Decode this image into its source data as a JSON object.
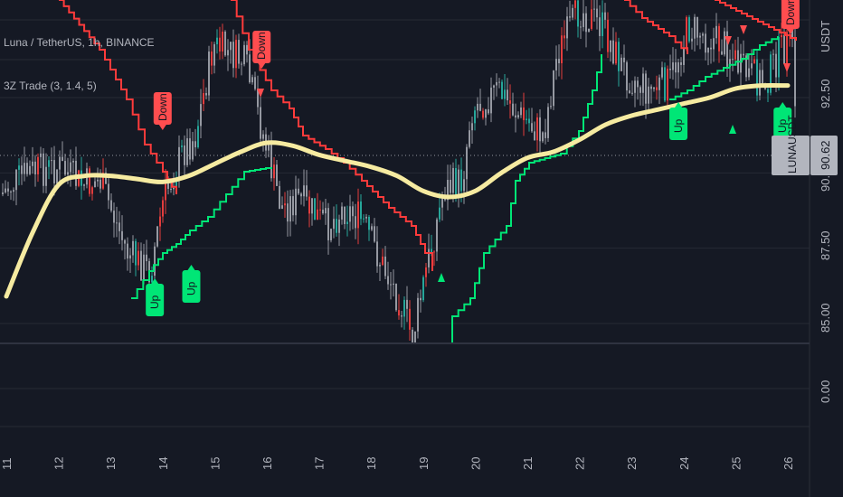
{
  "legend": {
    "symbol_line": "Luna / TetherUS, 1h, BINANCE",
    "indicator_line": "3Z Trade (3, 1.4, 5)"
  },
  "price_axis": {
    "currency_label": "USDT",
    "ticks": [
      "92.50",
      "90.00",
      "87.50",
      "85.00"
    ],
    "sub_tick": "0.00"
  },
  "last_price": {
    "symbol": "LUNAUSDT",
    "value": "90.62"
  },
  "x_axis": {
    "ticks": [
      "11",
      "12",
      "13",
      "14",
      "15",
      "16",
      "17",
      "18",
      "19",
      "20",
      "21",
      "22",
      "23",
      "24",
      "25",
      "26"
    ]
  },
  "colors": {
    "background": "#151924",
    "grid": "#262a35",
    "up_candle": "#26a69a",
    "down_candle": "#e23d3d",
    "neutral_candle": "#9598a1",
    "trail_up": "#00e676",
    "trail_down": "#ff3b3b",
    "ma": "#f6eba1",
    "up_label": "#00e676",
    "down_label": "#ff4d4f"
  },
  "chart_data": {
    "type": "line",
    "ylim": [
      84.2,
      96.4
    ],
    "x": [
      11,
      11.5,
      12,
      12.5,
      13,
      13.5,
      14,
      14.5,
      15,
      15.5,
      16,
      16.5,
      17,
      17.5,
      18,
      18.5,
      19,
      19.5,
      20,
      20.5,
      21,
      21.5,
      22,
      22.5,
      23,
      23.5,
      24,
      24.5,
      25,
      25.5,
      26
    ],
    "series": [
      {
        "values": [
          85.9,
          88.0,
          89.6,
          89.9,
          89.9,
          89.8,
          89.7,
          89.9,
          90.3,
          90.7,
          91.0,
          90.9,
          90.6,
          90.4,
          90.2,
          89.9,
          89.4,
          89.2,
          89.4,
          90.0,
          90.5,
          90.7,
          91.1,
          91.6,
          91.9,
          92.1,
          92.3,
          92.5,
          92.8,
          92.9,
          92.9
        ]
      }
    ],
    "signals": [
      {
        "label": "Up",
        "x": 13.85
      },
      {
        "label": "Down",
        "x": 14.0
      },
      {
        "label": "Up",
        "x": 14.55
      },
      {
        "label": "Down",
        "x": 15.9
      },
      {
        "label": "Up",
        "x": 23.9
      },
      {
        "label": "Up",
        "x": 25.9
      },
      {
        "label": "Down",
        "x": 26.05
      }
    ],
    "last_value": 90.62
  }
}
